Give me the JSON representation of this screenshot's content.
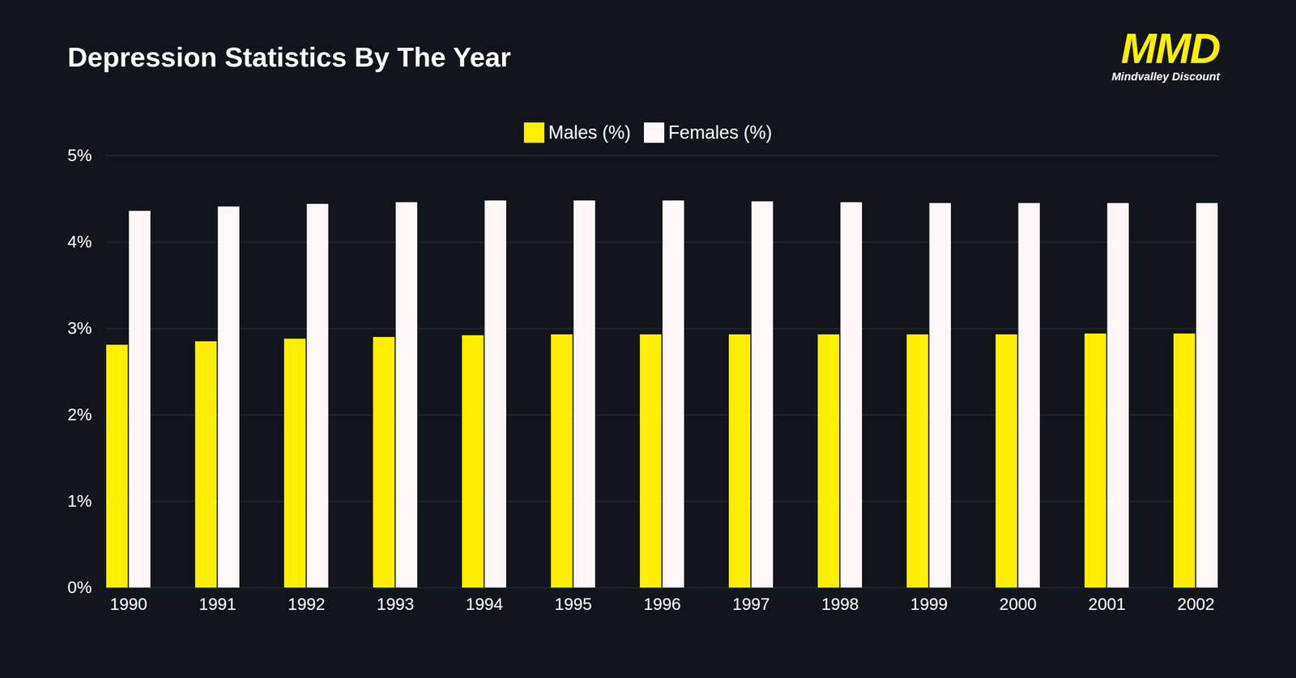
{
  "chart_data": {
    "type": "bar",
    "title": "Depression Statistics By The Year",
    "annotations": [
      "MMD",
      "Mindvalley Discount"
    ],
    "categories": [
      "1990",
      "1991",
      "1992",
      "1993",
      "1994",
      "1995",
      "1996",
      "1997",
      "1998",
      "1999",
      "2000",
      "2001",
      "2002"
    ],
    "series": [
      {
        "name": "Males (%)",
        "color": "#ffee00",
        "values": [
          2.81,
          2.85,
          2.88,
          2.9,
          2.92,
          2.93,
          2.93,
          2.93,
          2.93,
          2.93,
          2.93,
          2.94,
          2.94
        ]
      },
      {
        "name": "Females (%)",
        "color": "#fdf7f7",
        "values": [
          4.36,
          4.41,
          4.44,
          4.46,
          4.48,
          4.48,
          4.48,
          4.47,
          4.46,
          4.45,
          4.45,
          4.45,
          4.45
        ]
      }
    ],
    "ylim": [
      0,
      5
    ],
    "yticks": [
      {
        "value": 0,
        "label": "0%"
      },
      {
        "value": 1,
        "label": "1%"
      },
      {
        "value": 2,
        "label": "2%"
      },
      {
        "value": 3,
        "label": "3%"
      },
      {
        "value": 4,
        "label": "4%"
      },
      {
        "value": 5,
        "label": "5%"
      }
    ],
    "grid": true,
    "legend": "top"
  }
}
